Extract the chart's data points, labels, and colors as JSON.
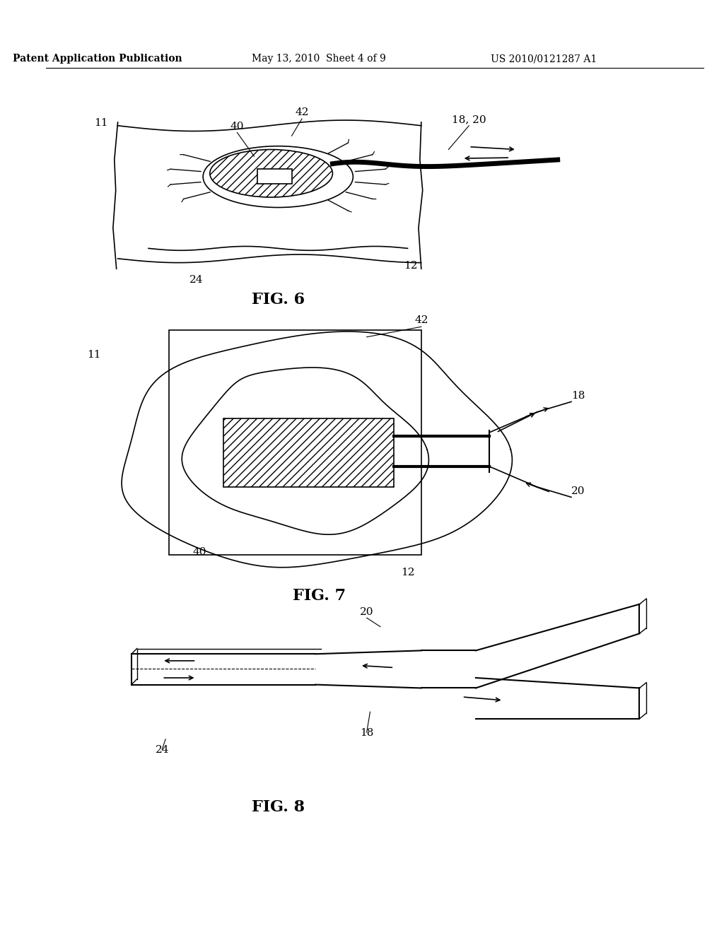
{
  "bg_color": "#ffffff",
  "header_text": "Patent Application Publication",
  "header_date": "May 13, 2010  Sheet 4 of 9",
  "header_patent": "US 2010/0121287 A1",
  "fig6_label": "FIG. 6",
  "fig7_label": "FIG. 7",
  "fig8_label": "FIG. 8",
  "line_color": "#000000",
  "hatch_color": "#000000",
  "label_fontsize": 11,
  "header_fontsize": 10,
  "fig_label_fontsize": 16
}
